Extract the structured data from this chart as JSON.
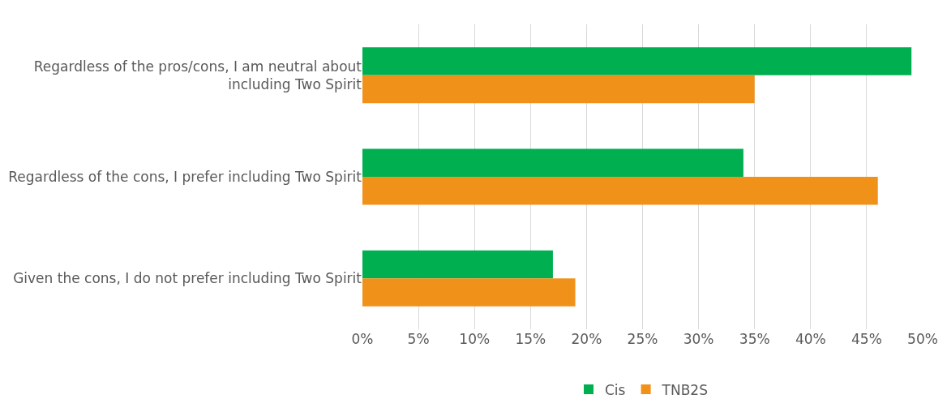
{
  "chart_data": {
    "type": "bar",
    "orientation": "horizontal",
    "categories": [
      "Regardless of the pros/cons, I am neutral about\nincluding Two Spirit",
      "Regardless of the cons, I prefer including Two Spirit",
      "Given the cons, I do not prefer including Two Spirit"
    ],
    "series": [
      {
        "name": "Cis",
        "color": "#00b050",
        "values": [
          0.49,
          0.34,
          0.17
        ]
      },
      {
        "name": "TNB2S",
        "color": "#f0921a",
        "values": [
          0.35,
          0.46,
          0.19
        ]
      }
    ],
    "xlim": [
      0,
      0.5
    ],
    "xticks": [
      {
        "value": 0,
        "label": "0%"
      },
      {
        "value": 0.05,
        "label": "5%"
      },
      {
        "value": 0.1,
        "label": "10%"
      },
      {
        "value": 0.15,
        "label": "15%"
      },
      {
        "value": 0.2,
        "label": "20%"
      },
      {
        "value": 0.25,
        "label": "25%"
      },
      {
        "value": 0.3,
        "label": "30%"
      },
      {
        "value": 0.35,
        "label": "35%"
      },
      {
        "value": 0.4,
        "label": "40%"
      },
      {
        "value": 0.45,
        "label": "45%"
      },
      {
        "value": 0.5,
        "label": "50%"
      }
    ],
    "grid": "x",
    "legend": "bottom"
  }
}
